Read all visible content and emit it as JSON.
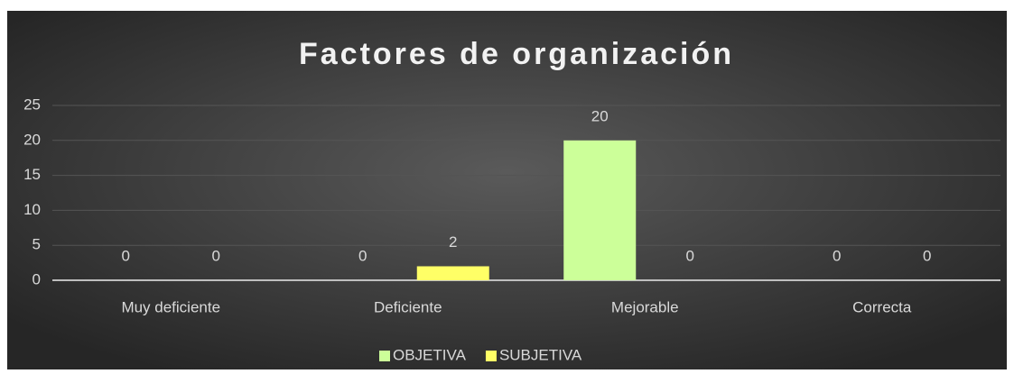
{
  "chart_data": {
    "type": "bar",
    "title": "Factores de organización",
    "categories": [
      "Muy deficiente",
      "Deficiente",
      "Mejorable",
      "Correcta"
    ],
    "series": [
      {
        "name": "OBJETIVA",
        "color": "#ccff99",
        "values": [
          0,
          0,
          20,
          0
        ]
      },
      {
        "name": "SUBJETIVA",
        "color": "#ffff66",
        "values": [
          0,
          2,
          0,
          0
        ]
      }
    ],
    "ylim": [
      0,
      25
    ],
    "yticks": [
      0,
      5,
      10,
      15,
      20,
      25
    ],
    "grid": true,
    "legend": "bottom"
  }
}
